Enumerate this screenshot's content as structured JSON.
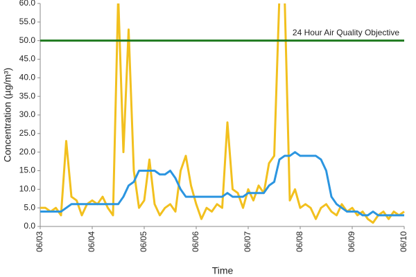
{
  "chart_data": {
    "type": "line",
    "x_label": "Time",
    "y_label": "Concentration (µg/m³)",
    "x": [
      0,
      0.1,
      0.2,
      0.3,
      0.4,
      0.5,
      0.6,
      0.7,
      0.8,
      0.9,
      1,
      1.1,
      1.2,
      1.3,
      1.4,
      1.5,
      1.6,
      1.7,
      1.8,
      1.9,
      2,
      2.1,
      2.2,
      2.3,
      2.4,
      2.5,
      2.6,
      2.7,
      2.8,
      2.9,
      3,
      3.1,
      3.2,
      3.3,
      3.4,
      3.5,
      3.6,
      3.7,
      3.8,
      3.9,
      4,
      4.1,
      4.2,
      4.3,
      4.4,
      4.5,
      4.6,
      4.7,
      4.8,
      4.9,
      5,
      5.1,
      5.2,
      5.3,
      5.4,
      5.5,
      5.6,
      5.7,
      5.8,
      5.9,
      6,
      6.1,
      6.2,
      6.3,
      6.4,
      6.5,
      6.6,
      6.7,
      6.8,
      6.9,
      7
    ],
    "series": [
      {
        "color": "#f2c01e",
        "values": [
          5,
          5,
          4,
          5,
          3,
          23,
          8,
          7,
          3,
          6,
          7,
          6,
          8,
          5,
          3,
          62,
          20,
          53,
          15,
          5,
          7,
          18,
          6,
          3,
          5,
          6,
          4,
          15,
          19,
          11,
          6,
          2,
          5,
          4,
          6,
          5,
          28,
          10,
          9,
          5,
          10,
          7,
          11,
          9,
          17,
          19,
          62,
          62,
          7,
          10,
          5,
          6,
          5,
          2,
          5,
          6,
          4,
          3,
          6,
          4,
          5,
          3,
          4,
          2,
          1,
          3,
          4,
          2,
          4,
          3,
          4
        ]
      },
      {
        "color": "#2b95e0",
        "values": [
          4,
          4,
          4,
          4,
          4,
          5,
          6,
          6,
          6,
          6,
          6,
          6,
          6,
          6,
          6,
          6,
          8,
          11,
          12,
          15,
          15,
          15,
          15,
          14,
          14,
          15,
          13,
          10,
          8,
          8,
          8,
          8,
          8,
          8,
          8,
          8,
          9,
          8,
          8,
          8,
          9,
          9,
          9,
          9,
          11,
          12,
          18,
          19,
          19,
          20,
          19,
          19,
          19,
          19,
          18,
          15,
          8,
          6,
          5,
          4,
          4,
          4,
          3,
          3,
          4,
          3,
          3,
          3,
          3,
          3,
          3
        ]
      }
    ],
    "reference_line": {
      "value": 50,
      "label": "24 Hour Air Quality Objective",
      "color": "#1f7a1f"
    },
    "xlim": [
      0,
      7
    ],
    "xticks": [
      {
        "value": 0,
        "label": "06/03"
      },
      {
        "value": 1,
        "label": "06/04"
      },
      {
        "value": 2,
        "label": "06/05"
      },
      {
        "value": 3,
        "label": "06/06"
      },
      {
        "value": 4,
        "label": "06/07"
      },
      {
        "value": 5,
        "label": "06/08"
      },
      {
        "value": 6,
        "label": "06/09"
      },
      {
        "value": 7,
        "label": "06/10"
      }
    ],
    "ylim": [
      0,
      60
    ],
    "yticks": [
      {
        "value": 0,
        "label": "0.0"
      },
      {
        "value": 5,
        "label": "5.0"
      },
      {
        "value": 10,
        "label": "10.0"
      },
      {
        "value": 15,
        "label": "15.0"
      },
      {
        "value": 20,
        "label": "20.0"
      },
      {
        "value": 25,
        "label": "25.0"
      },
      {
        "value": 30,
        "label": "30.0"
      },
      {
        "value": 35,
        "label": "35.0"
      },
      {
        "value": 40,
        "label": "40.0"
      },
      {
        "value": 45,
        "label": "45.0"
      },
      {
        "value": 50,
        "label": "50.0"
      },
      {
        "value": 55,
        "label": "55.0"
      },
      {
        "value": 60,
        "label": "60.0"
      }
    ]
  }
}
